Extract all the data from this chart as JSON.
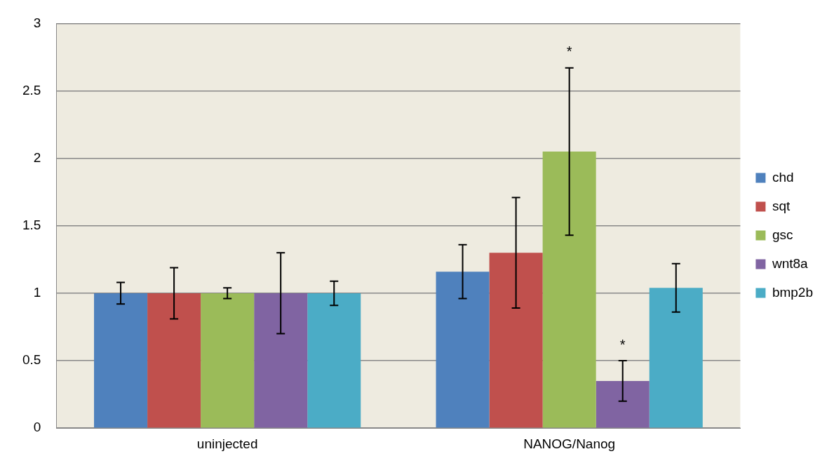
{
  "chart_data": {
    "type": "bar",
    "categories": [
      "uninjected",
      "NANOG/Nanog"
    ],
    "series": [
      {
        "name": "chd",
        "color": "#4f81bd",
        "values": [
          1,
          1.16
        ],
        "errors": [
          0.08,
          0.2
        ]
      },
      {
        "name": "sqt",
        "color": "#c0504d",
        "values": [
          1,
          1.3
        ],
        "errors": [
          0.19,
          0.41
        ]
      },
      {
        "name": "gsc",
        "color": "#9bbb59",
        "values": [
          1,
          2.05
        ],
        "errors": [
          0.04,
          0.62
        ]
      },
      {
        "name": "wnt8a",
        "color": "#8064a2",
        "values": [
          1,
          0.35
        ],
        "errors": [
          0.3,
          0.15
        ]
      },
      {
        "name": "bmp2b",
        "color": "#4bacc6",
        "values": [
          1,
          1.04
        ],
        "errors": [
          0.09,
          0.18
        ]
      }
    ],
    "ylim": [
      0,
      3
    ],
    "yticks": [
      0,
      0.5,
      1,
      1.5,
      2,
      2.5,
      3
    ],
    "grid": "y",
    "legend": "right",
    "annotations": [
      "*",
      "*"
    ]
  }
}
